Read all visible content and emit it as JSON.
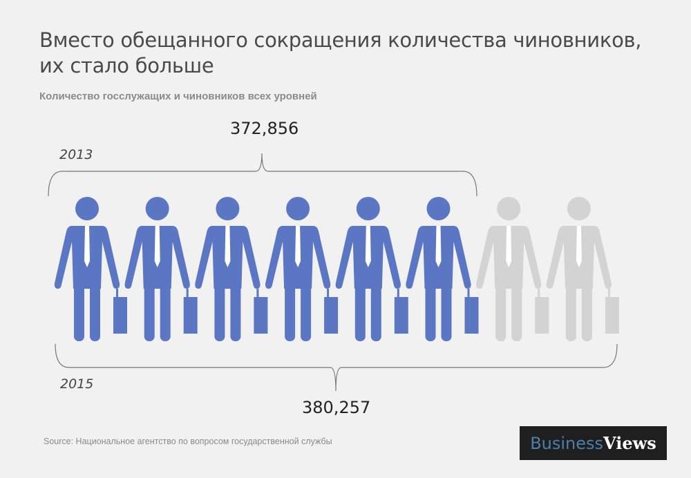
{
  "title_lines": [
    "Вместо обещанного сокращения количества чиновников,",
    "их стало больше"
  ],
  "subtitle": "Количество госслужащих и чиновников всех уровней",
  "source": "Source: Национальное агентство по вопросом государственной службы",
  "logo": {
    "part1": "Business",
    "part2": "Views"
  },
  "colors": {
    "highlight": "#5b77c4",
    "muted": "#d3d3d3",
    "background": "#f1f1f1"
  },
  "chart_data": {
    "type": "pictogram",
    "icon": "businessman-with-briefcase-icon",
    "icons_total": 8,
    "series": [
      {
        "name": "2013",
        "value": 372856,
        "value_label": "372,856",
        "icons_covered": 6
      },
      {
        "name": "2015",
        "value": 380257,
        "value_label": "380,257",
        "icons_covered": 8
      }
    ]
  }
}
